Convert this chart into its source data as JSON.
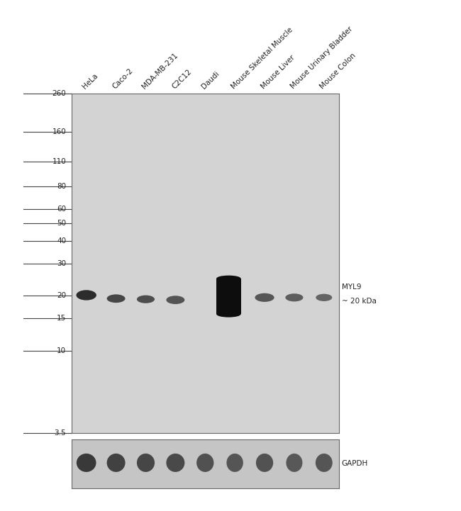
{
  "lane_labels": [
    "HeLa",
    "Caco-2",
    "MDA-MB-231",
    "C2C12",
    "Daudi",
    "Mouse Skeletal Muscle",
    "Mouse Liver",
    "Mouse Urinary Bladder",
    "Mouse Colon"
  ],
  "mw_markers": [
    260,
    160,
    110,
    80,
    60,
    50,
    40,
    30,
    20,
    15,
    10,
    3.5
  ],
  "annotation_myl9_line1": "MYL9",
  "annotation_myl9_line2": "~ 20 kDa",
  "annotation_gapdh": "GAPDH",
  "outer_bg": "#ffffff",
  "main_panel_bg": "#d3d3d3",
  "gapdh_panel_bg": "#c5c5c5",
  "mw_log_min": 1.252762968495368,
  "mw_log_max": 5.560681631038941,
  "n_lanes": 9
}
